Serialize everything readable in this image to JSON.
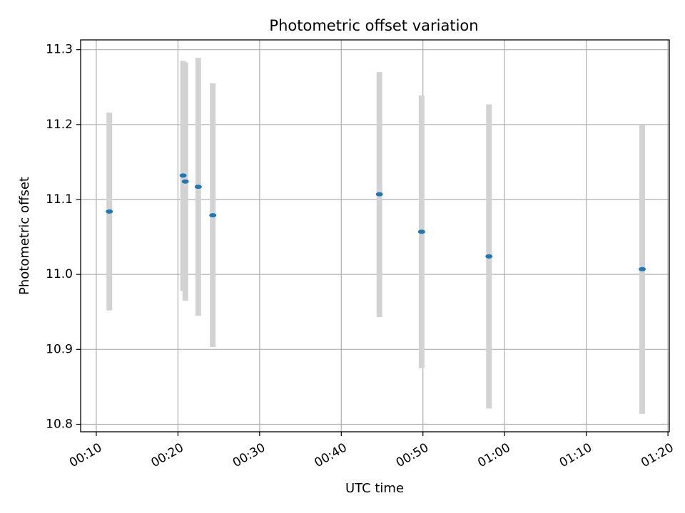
{
  "chart_data": {
    "type": "scatter",
    "title": "Photometric offset variation",
    "xlabel": "UTC time",
    "ylabel": "Photometric offset",
    "x_ticks": [
      "00:10",
      "00:20",
      "00:30",
      "00:40",
      "00:50",
      "01:00",
      "01:10",
      "01:20"
    ],
    "y_ticks": [
      "10.8",
      "10.9",
      "11.0",
      "11.1",
      "11.2",
      "11.3"
    ],
    "xlim": [
      "00:08:05",
      "01:20:10"
    ],
    "ylim": [
      10.79,
      11.313
    ],
    "grid": true,
    "colors": {
      "point": "#1f77b4",
      "errorbar": "#d3d3d3",
      "grid": "#b0b0b0"
    },
    "points": [
      {
        "x": "00:11:36",
        "y": 11.084,
        "y_low": 10.952,
        "y_high": 11.216
      },
      {
        "x": "00:20:38",
        "y": 11.132,
        "y_low": 10.978,
        "y_high": 11.285
      },
      {
        "x": "00:20:54",
        "y": 11.124,
        "y_low": 10.965,
        "y_high": 11.283
      },
      {
        "x": "00:22:29",
        "y": 11.117,
        "y_low": 10.945,
        "y_high": 11.289
      },
      {
        "x": "00:24:16",
        "y": 11.079,
        "y_low": 10.903,
        "y_high": 11.255
      },
      {
        "x": "00:44:40",
        "y": 11.107,
        "y_low": 10.943,
        "y_high": 11.27
      },
      {
        "x": "00:49:50",
        "y": 11.057,
        "y_low": 10.875,
        "y_high": 11.239
      },
      {
        "x": "00:58:05",
        "y": 11.024,
        "y_low": 10.821,
        "y_high": 11.227
      },
      {
        "x": "01:16:51",
        "y": 11.007,
        "y_low": 10.814,
        "y_high": 11.2
      }
    ]
  }
}
